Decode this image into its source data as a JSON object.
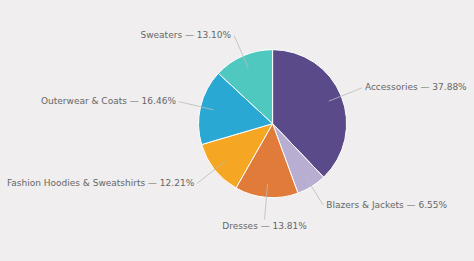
{
  "chart_data": {
    "type": "pie",
    "values": [
      37.88,
      6.55,
      13.81,
      12.21,
      16.46,
      13.1
    ],
    "value_labels": [
      "Accessories — 37.88%",
      "Blazers & Jackets — 6.55%",
      "Dresses — 13.81%",
      "Fashion Hoodies & Sweatshirts — 12.21%",
      "Outerwear & Coats — 16.46%",
      "Sweaters — 13.10%"
    ],
    "colors": [
      "#5b4a8a",
      "#b8aed2",
      "#e07b39",
      "#f5a623",
      "#29a8d4",
      "#4fc9bf"
    ],
    "data_labels": true
  }
}
